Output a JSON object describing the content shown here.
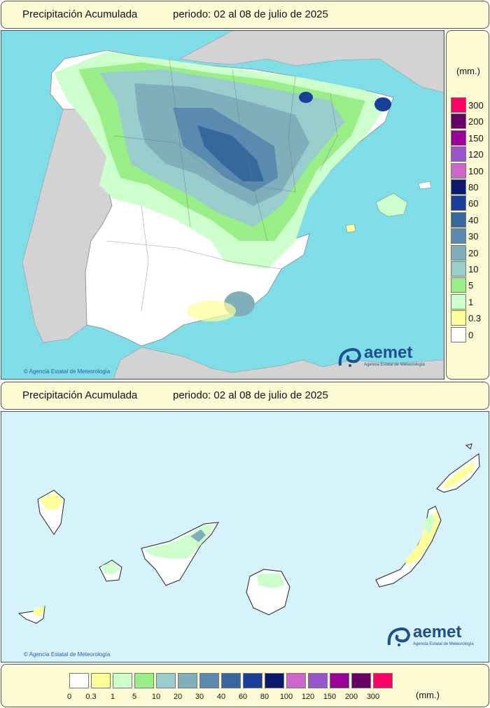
{
  "top_panel": {
    "title": "Precipitación Acumulada",
    "period": "periodo: 02 al 08 de julio de 2025"
  },
  "bottom_panel": {
    "title": "Precipitación Acumulada",
    "period": "periodo: 02 al 08 de julio de 2025"
  },
  "legend": {
    "unit": "(mm.)",
    "classes": [
      {
        "label": "0",
        "color": "#ffffff"
      },
      {
        "label": "0.3",
        "color": "#ffff99"
      },
      {
        "label": "1",
        "color": "#ccffcc"
      },
      {
        "label": "5",
        "color": "#99ee88"
      },
      {
        "label": "10",
        "color": "#99cccc"
      },
      {
        "label": "20",
        "color": "#80aebb"
      },
      {
        "label": "30",
        "color": "#5a8ab0"
      },
      {
        "label": "40",
        "color": "#36689e"
      },
      {
        "label": "60",
        "color": "#1a3f9a"
      },
      {
        "label": "80",
        "color": "#0b1a6e"
      },
      {
        "label": "100",
        "color": "#cc66cc"
      },
      {
        "label": "120",
        "color": "#9955cc"
      },
      {
        "label": "150",
        "color": "#990099"
      },
      {
        "label": "200",
        "color": "#660066"
      },
      {
        "label": "300",
        "color": "#ff0066"
      }
    ]
  },
  "branding": {
    "logo_text": "aemet",
    "logo_subtitle": "Agencia Estatal de Meteorología",
    "copyright": "Agencia Estatal de Meteorología"
  },
  "colors": {
    "sea": "#7fdde8",
    "sea_canarias": "#d6f3fb",
    "foreign_land": "#d3d3d3",
    "banner": "#fdfbd4",
    "logo_blue": "#1f4f8f"
  }
}
